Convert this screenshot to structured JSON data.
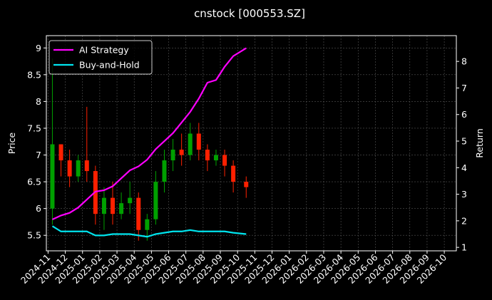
{
  "chart_data": {
    "type": "candlestick",
    "title": "cnstock [000553.SZ]",
    "y_label": "Price",
    "y2_label": "Return",
    "x": [
      "2024-11",
      "2024-11",
      "2024-12",
      "2024-12",
      "2025-01",
      "2025-01",
      "2025-02",
      "2025-02",
      "2025-03",
      "2025-03",
      "2025-04",
      "2025-04",
      "2025-05",
      "2025-05",
      "2025-06",
      "2025-06",
      "2025-07",
      "2025-07",
      "2025-08",
      "2025-08",
      "2025-09",
      "2025-09",
      "2025-10"
    ],
    "open": [
      6.0,
      7.2,
      6.9,
      6.6,
      6.9,
      6.7,
      5.9,
      6.2,
      5.9,
      6.1,
      6.2,
      5.6,
      5.8,
      6.5,
      6.9,
      7.1,
      7.0,
      7.4,
      7.1,
      6.9,
      7.0,
      6.8,
      6.5
    ],
    "high": [
      8.8,
      7.2,
      7.1,
      7.0,
      7.9,
      6.8,
      6.4,
      6.5,
      6.3,
      6.5,
      6.3,
      5.9,
      6.7,
      7.1,
      7.3,
      7.4,
      7.6,
      7.6,
      7.2,
      7.1,
      7.1,
      6.9,
      6.6
    ],
    "low": [
      5.7,
      6.6,
      6.4,
      6.5,
      6.5,
      5.7,
      5.6,
      5.7,
      5.8,
      5.9,
      5.4,
      5.4,
      5.7,
      6.3,
      6.7,
      6.8,
      6.9,
      6.9,
      6.7,
      6.8,
      6.6,
      6.3,
      6.2
    ],
    "close": [
      7.2,
      6.9,
      6.6,
      6.9,
      6.7,
      5.9,
      6.2,
      5.9,
      6.1,
      6.2,
      5.6,
      5.8,
      6.5,
      6.9,
      7.1,
      7.0,
      7.4,
      7.1,
      6.9,
      7.0,
      6.8,
      6.5,
      6.4
    ],
    "up_color": "#00a000",
    "down_color": "#ff2000",
    "series": [
      {
        "name": "AI Strategy",
        "color": "#ff00ff",
        "axis": "y2",
        "values": [
          2.05,
          2.2,
          2.3,
          2.5,
          2.8,
          3.1,
          3.15,
          3.3,
          3.6,
          3.9,
          4.05,
          4.3,
          4.7,
          5.0,
          5.3,
          5.7,
          6.1,
          6.6,
          7.2,
          7.3,
          7.8,
          8.2,
          8.5
        ]
      },
      {
        "name": "Buy-and-Hold",
        "color": "#00e5ee",
        "axis": "y2",
        "values": [
          1.8,
          1.6,
          1.6,
          1.6,
          1.6,
          1.45,
          1.45,
          1.5,
          1.5,
          1.5,
          1.45,
          1.4,
          1.5,
          1.55,
          1.6,
          1.6,
          1.65,
          1.6,
          1.6,
          1.6,
          1.6,
          1.55,
          1.5
        ]
      }
    ],
    "xlim": [
      "2024-11",
      "2026-10"
    ],
    "xticks": [
      "2024-11",
      "2024-12",
      "2025-01",
      "2025-02",
      "2025-03",
      "2025-04",
      "2025-05",
      "2025-06",
      "2025-07",
      "2025-08",
      "2025-09",
      "2025-10",
      "2025-11",
      "2025-12",
      "2026-01",
      "2026-02",
      "2026-03",
      "2026-04",
      "2026-05",
      "2026-06",
      "2026-07",
      "2026-08",
      "2026-09",
      "2026-10"
    ],
    "ylim": [
      5.21,
      9.23
    ],
    "yticks": [
      5.5,
      6.0,
      6.5,
      7.0,
      7.5,
      8.0,
      8.5,
      9.0
    ],
    "y2lim": [
      0.87,
      8.97
    ],
    "y2ticks": [
      1,
      2,
      3,
      4,
      5,
      6,
      7,
      8
    ],
    "grid": true,
    "legend": "upper left"
  }
}
